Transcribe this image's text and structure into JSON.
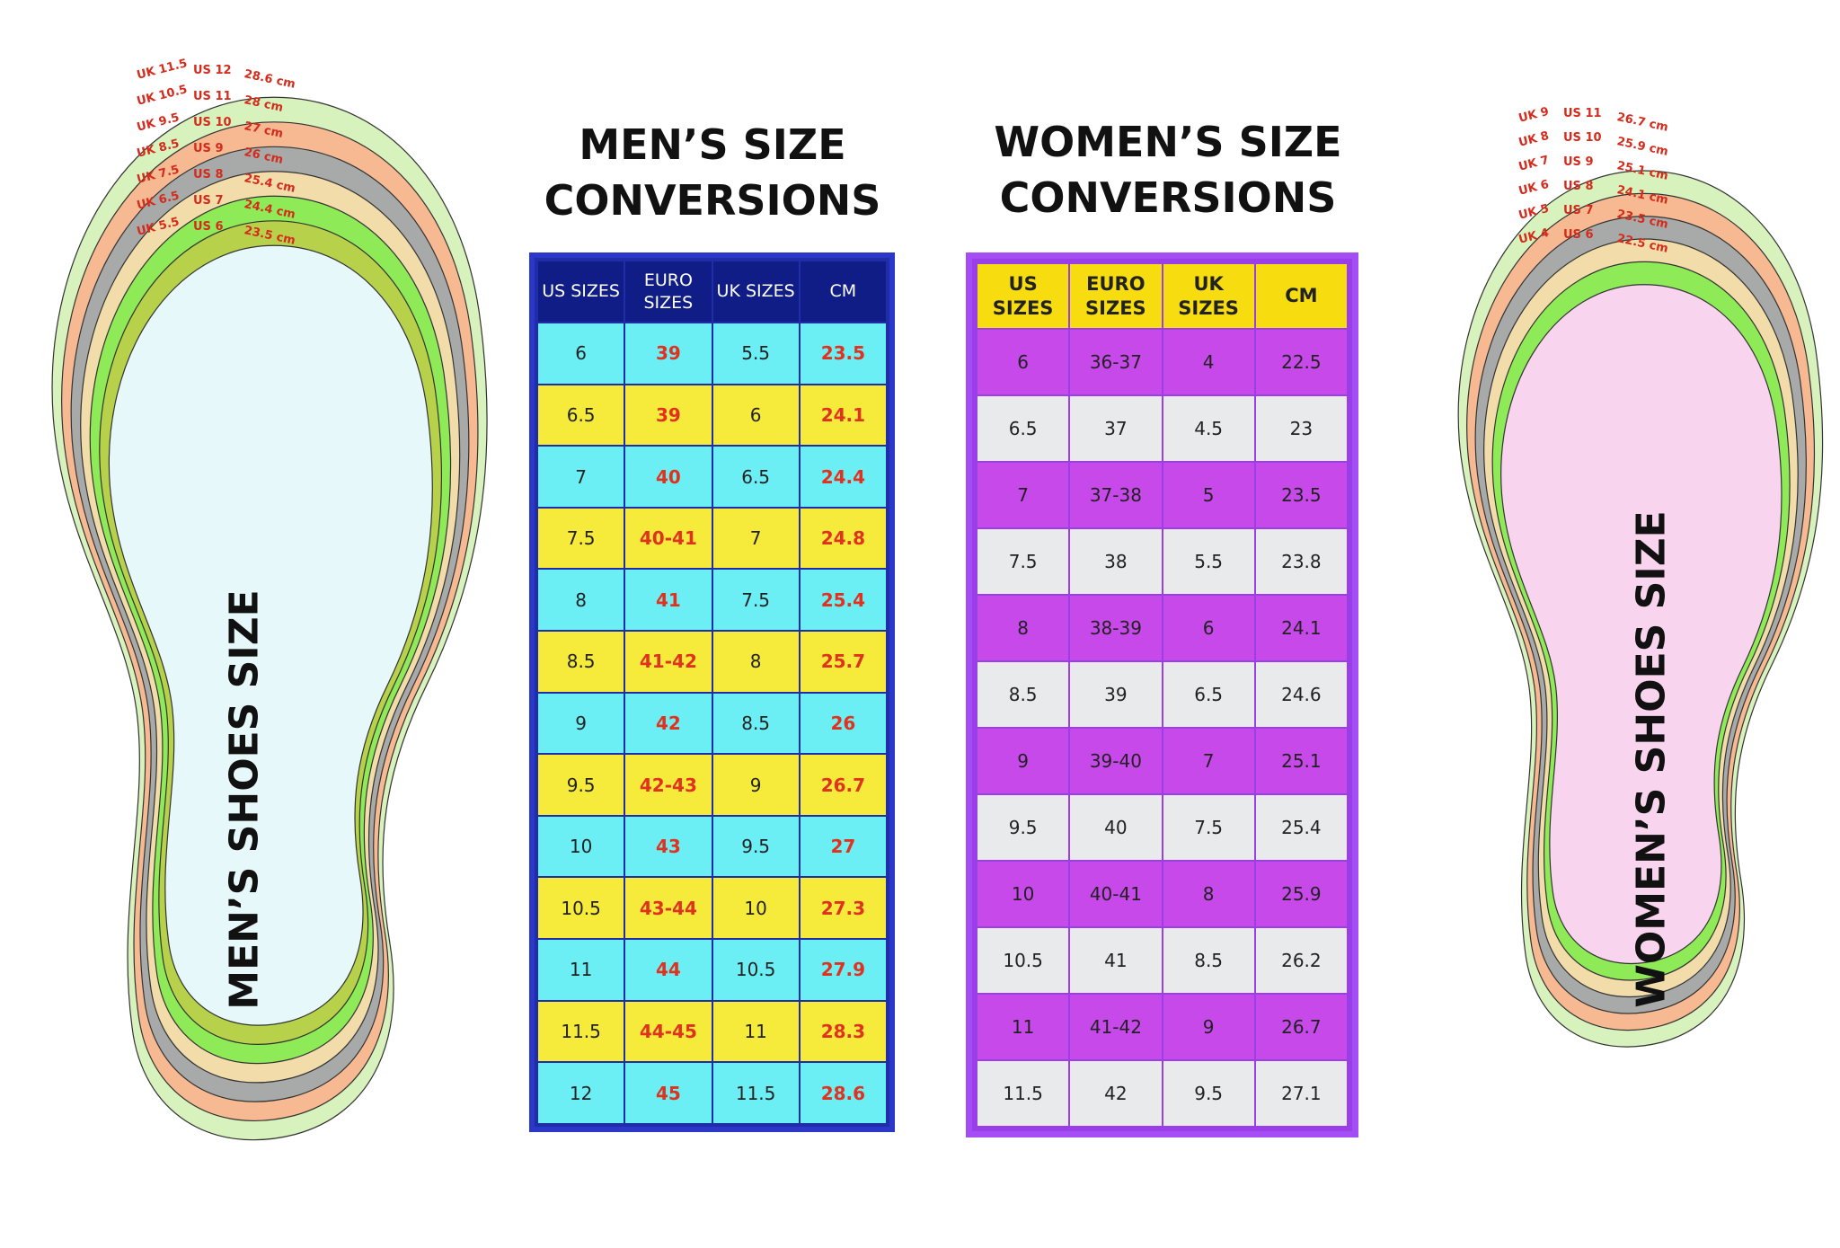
{
  "men_section": {
    "title_line1": "MEN’S SIZE",
    "title_line2": "CONVERSIONS",
    "headers": [
      "US SIZES",
      "EURO SIZES",
      "UK SIZES",
      "CM"
    ],
    "rows": [
      [
        "6",
        "39",
        "5.5",
        "23.5"
      ],
      [
        "6.5",
        "39",
        "6",
        "24.1"
      ],
      [
        "7",
        "40",
        "6.5",
        "24.4"
      ],
      [
        "7.5",
        "40-41",
        "7",
        "24.8"
      ],
      [
        "8",
        "41",
        "7.5",
        "25.4"
      ],
      [
        "8.5",
        "41-42",
        "8",
        "25.7"
      ],
      [
        "9",
        "42",
        "8.5",
        "26"
      ],
      [
        "9.5",
        "42-43",
        "9",
        "26.7"
      ],
      [
        "10",
        "43",
        "9.5",
        "27"
      ],
      [
        "10.5",
        "43-44",
        "10",
        "27.3"
      ],
      [
        "11",
        "44",
        "10.5",
        "27.9"
      ],
      [
        "11.5",
        "44-45",
        "11",
        "28.3"
      ],
      [
        "12",
        "45",
        "11.5",
        "28.6"
      ]
    ],
    "row_colors": [
      "#6ceef5",
      "#f6ea3a"
    ],
    "header_color": "#101d86",
    "border_color": "#2a37c8"
  },
  "women_section": {
    "title_line1": "WOMEN’S SIZE",
    "title_line2": "CONVERSIONS",
    "headers": [
      "US SIZES",
      "EURO SIZES",
      "UK SIZES",
      "CM"
    ],
    "rows": [
      [
        "6",
        "36-37",
        "4",
        "22.5"
      ],
      [
        "6.5",
        "37",
        "4.5",
        "23"
      ],
      [
        "7",
        "37-38",
        "5",
        "23.5"
      ],
      [
        "7.5",
        "38",
        "5.5",
        "23.8"
      ],
      [
        "8",
        "38-39",
        "6",
        "24.1"
      ],
      [
        "8.5",
        "39",
        "6.5",
        "24.6"
      ],
      [
        "9",
        "39-40",
        "7",
        "25.1"
      ],
      [
        "9.5",
        "40",
        "7.5",
        "25.4"
      ],
      [
        "10",
        "40-41",
        "8",
        "25.9"
      ],
      [
        "10.5",
        "41",
        "8.5",
        "26.2"
      ],
      [
        "11",
        "41-42",
        "9",
        "26.7"
      ],
      [
        "11.5",
        "42",
        "9.5",
        "27.1"
      ]
    ],
    "row_colors": [
      "#c749ea",
      "#e8eaeb"
    ],
    "header_color": "#f7dd10",
    "border_color": "#a44df5"
  },
  "men_insole": {
    "label": "MEN’S SHOES SIZE",
    "fill_color": "#e6f8fa",
    "layers": [
      {
        "uk": "UK 11.5",
        "us": "US 12",
        "cm": "28.6 cm",
        "color": "#d8f2bd"
      },
      {
        "uk": "UK 10.5",
        "us": "US 11",
        "cm": "28 cm",
        "color": "#f6b991"
      },
      {
        "uk": "UK 9.5",
        "us": "US 10",
        "cm": "27 cm",
        "color": "#a7aaa8"
      },
      {
        "uk": "UK 8.5",
        "us": "US 9",
        "cm": "26 cm",
        "color": "#f1dcaa"
      },
      {
        "uk": "UK 7.5",
        "us": "US 8",
        "cm": "25.4 cm",
        "color": "#8fea57"
      },
      {
        "uk": "UK 6.5",
        "us": "US 7",
        "cm": "24.4 cm",
        "color": "#b7d24a"
      },
      {
        "uk": "UK 5.5",
        "us": "US 6",
        "cm": "23.5 cm",
        "color": "#e6f8fa"
      }
    ]
  },
  "women_insole": {
    "label": "WOMEN’S SHOES SIZE",
    "fill_color": "#f8d4ee",
    "layers": [
      {
        "uk": "UK 9",
        "us": "US 11",
        "cm": "26.7 cm",
        "color": "#d8f2bd"
      },
      {
        "uk": "UK 8",
        "us": "US 10",
        "cm": "25.9 cm",
        "color": "#f6b991"
      },
      {
        "uk": "UK 7",
        "us": "US 9",
        "cm": "25.1 cm",
        "color": "#a7aaa8"
      },
      {
        "uk": "UK 6",
        "us": "US 8",
        "cm": "24.1 cm",
        "color": "#f1dcaa"
      },
      {
        "uk": "UK 5",
        "us": "US 7",
        "cm": "23.5 cm",
        "color": "#8fea57"
      },
      {
        "uk": "UK 4",
        "us": "US 6",
        "cm": "22.5 cm",
        "color": "#f8d4ee"
      }
    ]
  }
}
